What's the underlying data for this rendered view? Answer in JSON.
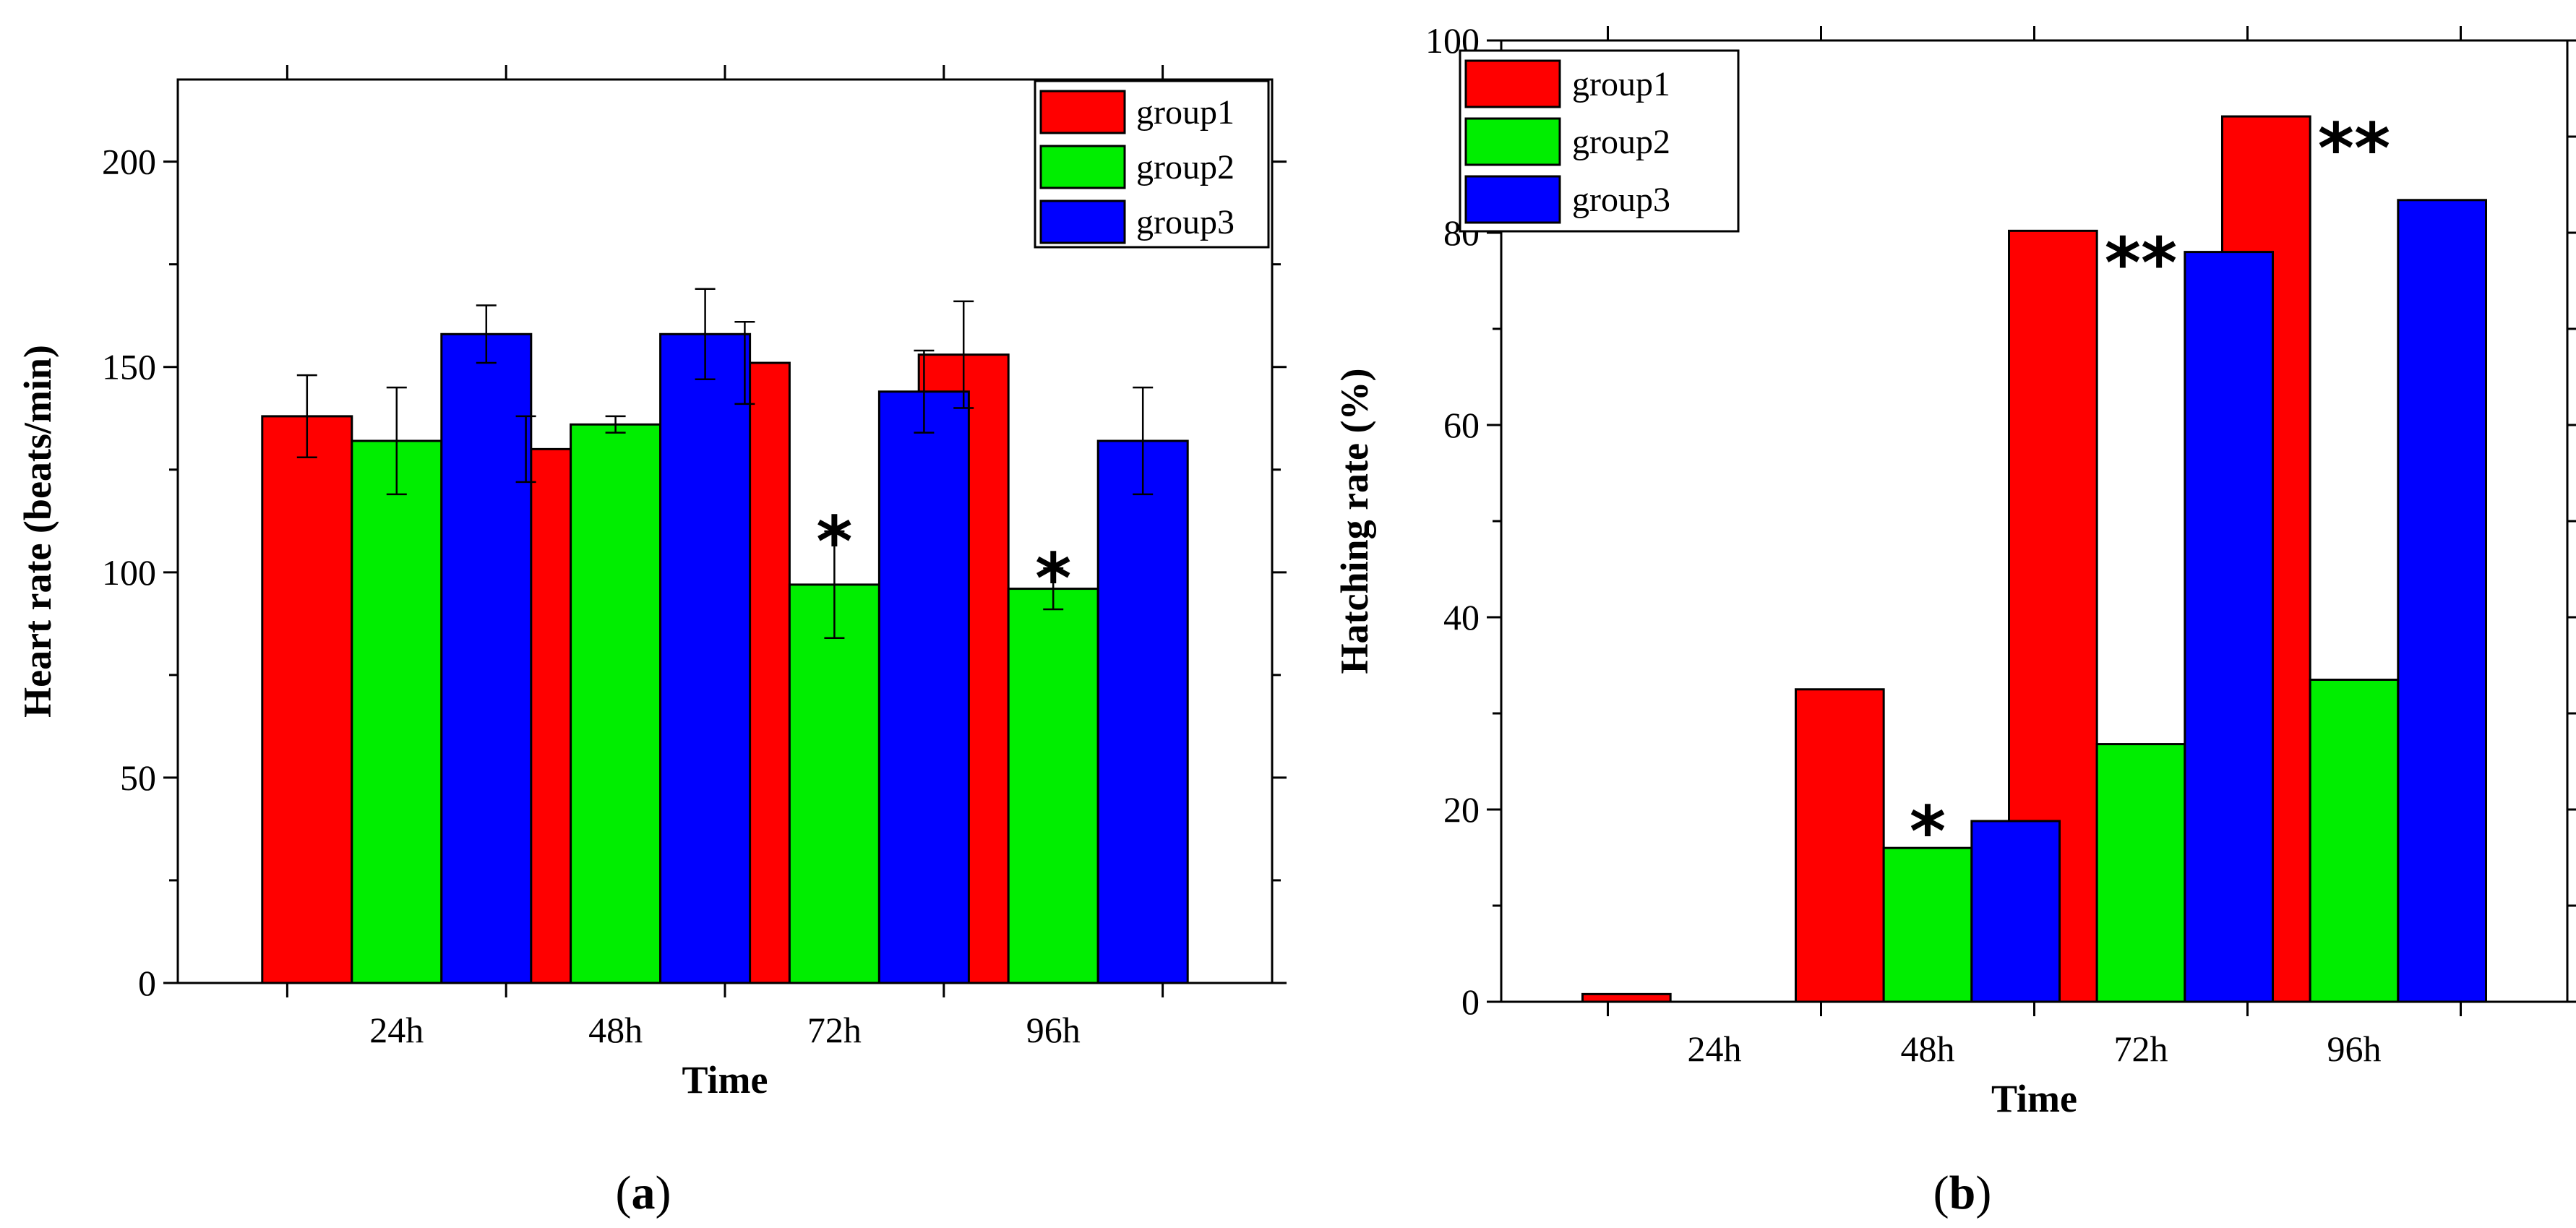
{
  "chart_data": [
    {
      "type": "bar",
      "caption": {
        "open": "(",
        "letter": "a",
        "close": ")"
      },
      "title": "",
      "xlabel": "Time",
      "ylabel": "Heart rate (beats/min)",
      "categories": [
        "24h",
        "48h",
        "72h",
        "96h"
      ],
      "ylim": [
        0,
        220
      ],
      "yticks": [
        0,
        50,
        100,
        150,
        200
      ],
      "series": [
        {
          "name": "group1",
          "color": "#ff0000",
          "values": [
            138,
            130,
            151,
            153
          ],
          "errors": [
            10,
            8,
            10,
            13
          ]
        },
        {
          "name": "group2",
          "color": "#00ee00",
          "values": [
            132,
            136,
            97,
            96
          ],
          "errors": [
            13,
            2,
            13,
            5
          ]
        },
        {
          "name": "group3",
          "color": "#0000ff",
          "values": [
            158,
            158,
            144,
            132
          ],
          "errors": [
            7,
            11,
            10,
            13
          ]
        }
      ],
      "annotations": [
        {
          "text": "*",
          "category": 2,
          "series": 1
        },
        {
          "text": "*",
          "category": 3,
          "series": 1
        }
      ],
      "legend": "top-right"
    },
    {
      "type": "bar",
      "caption": {
        "open": "(",
        "letter": "b",
        "close": ")"
      },
      "title": "",
      "xlabel": "Time",
      "ylabel": "Hatching rate (%)",
      "categories": [
        "24h",
        "48h",
        "72h",
        "96h"
      ],
      "ylim": [
        0,
        100
      ],
      "yticks": [
        0,
        20,
        40,
        60,
        80,
        100
      ],
      "series": [
        {
          "name": "group1",
          "color": "#ff0000",
          "values": [
            0.8,
            32.5,
            80.2,
            92.1
          ]
        },
        {
          "name": "group2",
          "color": "#00ee00",
          "values": [
            0,
            16,
            26.8,
            33.5
          ]
        },
        {
          "name": "group3",
          "color": "#0000ff",
          "values": [
            0,
            18.8,
            78,
            83.4
          ]
        }
      ],
      "annotations": [
        {
          "text": "*",
          "category": 1,
          "series": 1
        },
        {
          "text": "**",
          "category": 2,
          "series": 1
        },
        {
          "text": "**",
          "category": 3,
          "series": 1
        }
      ],
      "legend": "top-left"
    }
  ]
}
